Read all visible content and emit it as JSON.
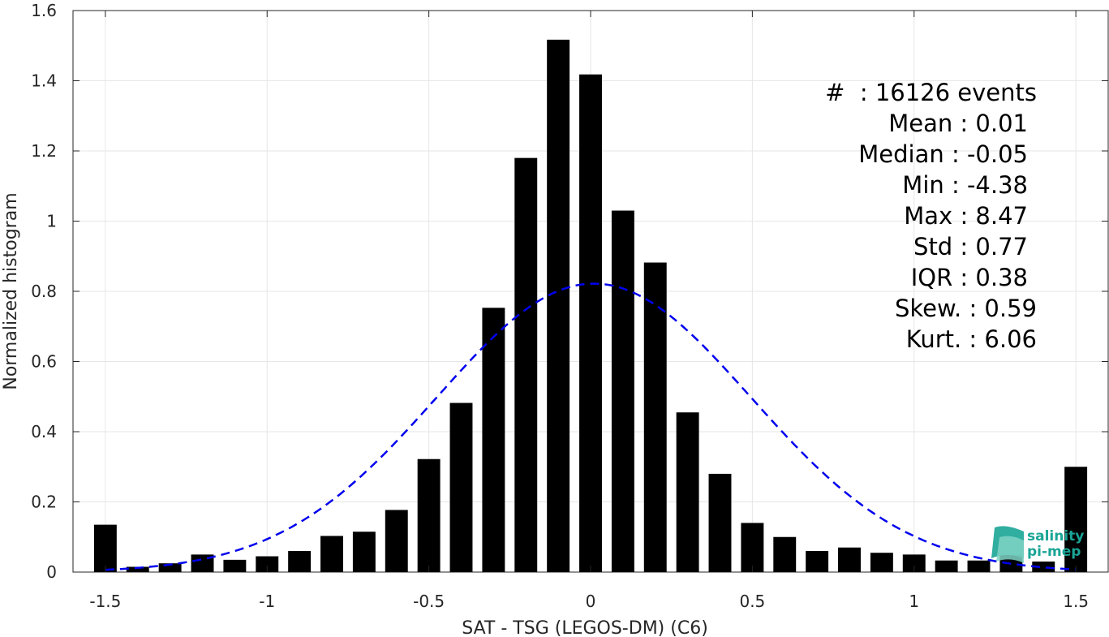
{
  "chart_data": {
    "type": "bar",
    "xlabel": "SAT - TSG (LEGOS-DM) (C6)",
    "ylabel": "Normalized histogram",
    "xlim": [
      -1.6,
      1.6
    ],
    "ylim": [
      0,
      1.6
    ],
    "xticks": [
      -1.5,
      -1,
      -0.5,
      0,
      0.5,
      1,
      1.5
    ],
    "xtick_labels": [
      "-1.5",
      "-1",
      "-0.5",
      "0",
      "0.5",
      "1",
      "1.5"
    ],
    "yticks": [
      0,
      0.2,
      0.4,
      0.6,
      0.8,
      1,
      1.2,
      1.4,
      1.6
    ],
    "ytick_labels": [
      "0",
      "0.2",
      "0.4",
      "0.6",
      "0.8",
      "1",
      "1.2",
      "1.4",
      "1.6"
    ],
    "grid": true,
    "bar_width": 0.07,
    "bins": [
      {
        "x": -1.5,
        "value": 0.135
      },
      {
        "x": -1.4,
        "value": 0.015
      },
      {
        "x": -1.3,
        "value": 0.025
      },
      {
        "x": -1.2,
        "value": 0.05
      },
      {
        "x": -1.1,
        "value": 0.035
      },
      {
        "x": -1.0,
        "value": 0.045
      },
      {
        "x": -0.9,
        "value": 0.06
      },
      {
        "x": -0.8,
        "value": 0.103
      },
      {
        "x": -0.7,
        "value": 0.115
      },
      {
        "x": -0.6,
        "value": 0.177
      },
      {
        "x": -0.5,
        "value": 0.322
      },
      {
        "x": -0.4,
        "value": 0.482
      },
      {
        "x": -0.3,
        "value": 0.753
      },
      {
        "x": -0.2,
        "value": 1.18
      },
      {
        "x": -0.1,
        "value": 1.517
      },
      {
        "x": 0.0,
        "value": 1.418
      },
      {
        "x": 0.1,
        "value": 1.03
      },
      {
        "x": 0.2,
        "value": 0.882
      },
      {
        "x": 0.3,
        "value": 0.455
      },
      {
        "x": 0.4,
        "value": 0.28
      },
      {
        "x": 0.5,
        "value": 0.14
      },
      {
        "x": 0.6,
        "value": 0.1
      },
      {
        "x": 0.7,
        "value": 0.06
      },
      {
        "x": 0.8,
        "value": 0.07
      },
      {
        "x": 0.9,
        "value": 0.055
      },
      {
        "x": 1.0,
        "value": 0.05
      },
      {
        "x": 1.1,
        "value": 0.033
      },
      {
        "x": 1.2,
        "value": 0.033
      },
      {
        "x": 1.3,
        "value": 0.05
      },
      {
        "x": 1.4,
        "value": 0.03
      },
      {
        "x": 1.5,
        "value": 0.3
      }
    ],
    "fit_curve": {
      "style": "dashed",
      "color": "#0000ee",
      "mean": 0.01,
      "std": 0.485,
      "peak": 0.822,
      "x_range": [
        -1.5,
        1.5
      ]
    },
    "bar_color": "#000000",
    "stats": {
      "count": "#  : 16126 events",
      "mean": "Mean : 0.01",
      "median": "Median : -0.05",
      "min": "Min : -4.38",
      "max": "Max : 8.47",
      "std": "Std : 0.77",
      "iqr": "IQR : 0.38",
      "skew": "Skew. : 0.59",
      "kurt": "Kurt. : 6.06"
    }
  },
  "logo": {
    "line1": "salinity",
    "line2": "pi-mep",
    "color": "#1aa596"
  }
}
